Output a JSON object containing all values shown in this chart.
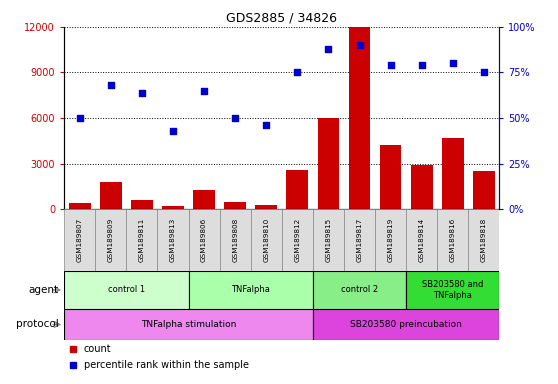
{
  "title": "GDS2885 / 34826",
  "samples": [
    "GSM189807",
    "GSM189809",
    "GSM189811",
    "GSM189813",
    "GSM189806",
    "GSM189808",
    "GSM189810",
    "GSM189812",
    "GSM189815",
    "GSM189817",
    "GSM189819",
    "GSM189814",
    "GSM189816",
    "GSM189818"
  ],
  "counts": [
    400,
    1800,
    600,
    200,
    1300,
    500,
    300,
    2600,
    6000,
    12000,
    4200,
    2900,
    4700,
    2500
  ],
  "percentile": [
    50,
    68,
    64,
    43,
    65,
    50,
    46,
    75,
    88,
    90,
    79,
    79,
    80,
    75
  ],
  "bar_color": "#cc0000",
  "dot_color": "#0000cc",
  "ylim_left": [
    0,
    12000
  ],
  "ylim_right": [
    0,
    100
  ],
  "yticks_left": [
    0,
    3000,
    6000,
    9000,
    12000
  ],
  "yticks_right": [
    0,
    25,
    50,
    75,
    100
  ],
  "ytick_labels_right": [
    "0%",
    "25%",
    "50%",
    "75%",
    "100%"
  ],
  "agent_groups": [
    {
      "label": "control 1",
      "start": 0,
      "end": 4,
      "color": "#ccffcc"
    },
    {
      "label": "TNFalpha",
      "start": 4,
      "end": 8,
      "color": "#aaffaa"
    },
    {
      "label": "control 2",
      "start": 8,
      "end": 11,
      "color": "#88ee88"
    },
    {
      "label": "SB203580 and\nTNFalpha",
      "start": 11,
      "end": 14,
      "color": "#33dd33"
    }
  ],
  "protocol_groups": [
    {
      "label": "TNFalpha stimulation",
      "start": 0,
      "end": 8,
      "color": "#ee88ee"
    },
    {
      "label": "SB203580 preincubation",
      "start": 8,
      "end": 14,
      "color": "#dd44dd"
    }
  ],
  "tick_label_color_left": "#cc0000",
  "tick_label_color_right": "#0000cc",
  "sample_box_color": "#dddddd",
  "agent_label": "agent",
  "protocol_label": "protocol",
  "legend_count": "count",
  "legend_pct": "percentile rank within the sample"
}
